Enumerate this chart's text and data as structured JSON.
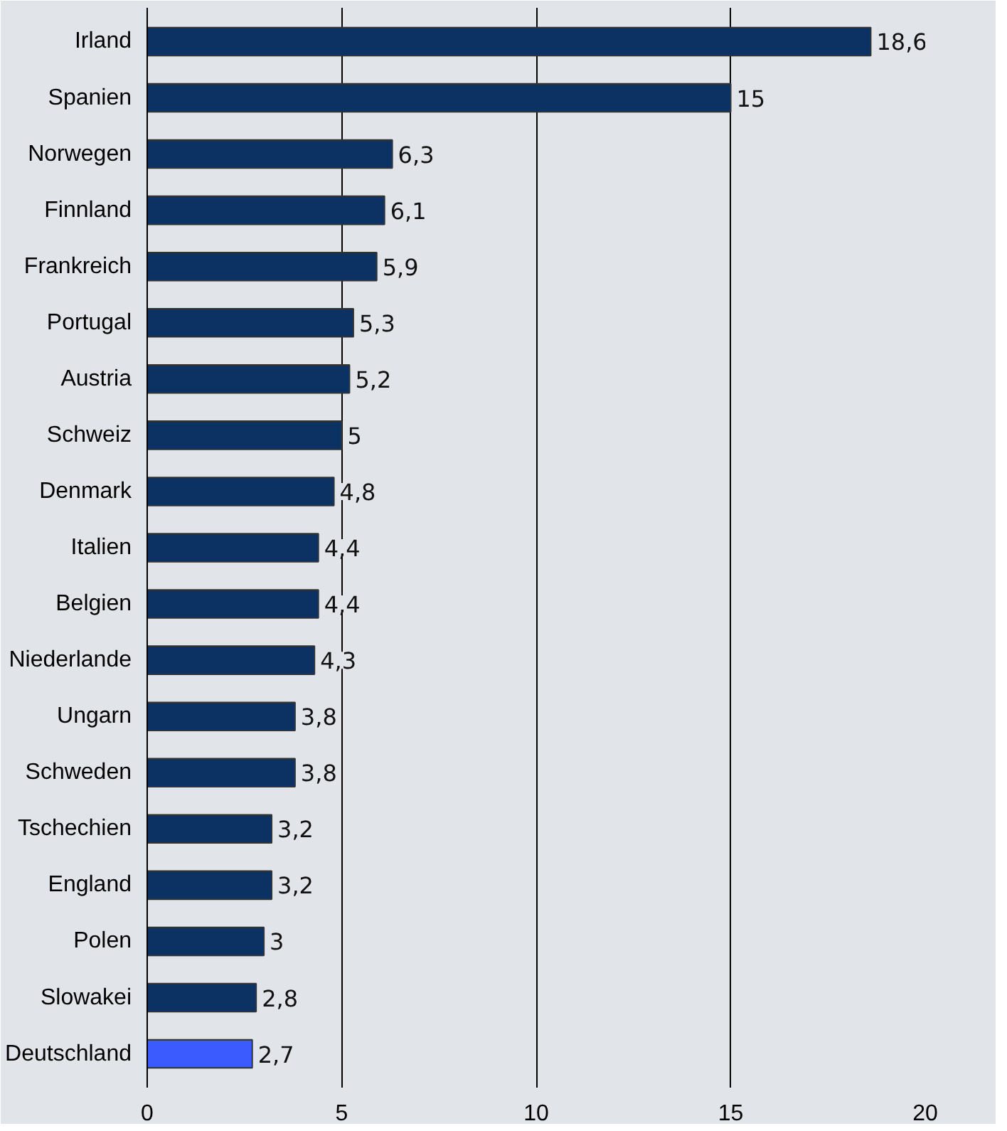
{
  "chart_data": {
    "type": "bar",
    "orientation": "horizontal",
    "categories": [
      "Irland",
      "Spanien",
      "Norwegen",
      "Finnland",
      "Frankreich",
      "Portugal",
      "Austria",
      "Schweiz",
      "Denmark",
      "Italien",
      "Belgien",
      "Niederlande",
      "Ungarn",
      "Schweden",
      "Tschechien",
      "England",
      "Polen",
      "Slowakei",
      "Deutschland"
    ],
    "values": [
      18.6,
      15,
      6.3,
      6.1,
      5.9,
      5.3,
      5.2,
      5,
      4.8,
      4.4,
      4.4,
      4.3,
      3.8,
      3.8,
      3.2,
      3.2,
      3,
      2.8,
      2.7
    ],
    "colors": [
      "#0c3263",
      "#0c3263",
      "#0c3263",
      "#0c3263",
      "#0c3263",
      "#0c3263",
      "#0c3263",
      "#0c3263",
      "#0c3263",
      "#0c3263",
      "#0c3263",
      "#0c3263",
      "#0c3263",
      "#0c3263",
      "#0c3263",
      "#0c3263",
      "#0c3263",
      "#0c3263",
      "#3b5bff"
    ],
    "value_labels": [
      "18,6",
      "15",
      "6,3",
      "6,1",
      "5,9",
      "5,3",
      "5,2",
      "5",
      "4,8",
      "4,4",
      "4,4",
      "4,3",
      "3,8",
      "3,8",
      "3,2",
      "3,2",
      "3",
      "2,8",
      "2,7"
    ],
    "xlim": [
      0,
      20
    ],
    "xticks": [
      0,
      5,
      10,
      15,
      20
    ],
    "grid": "x"
  }
}
